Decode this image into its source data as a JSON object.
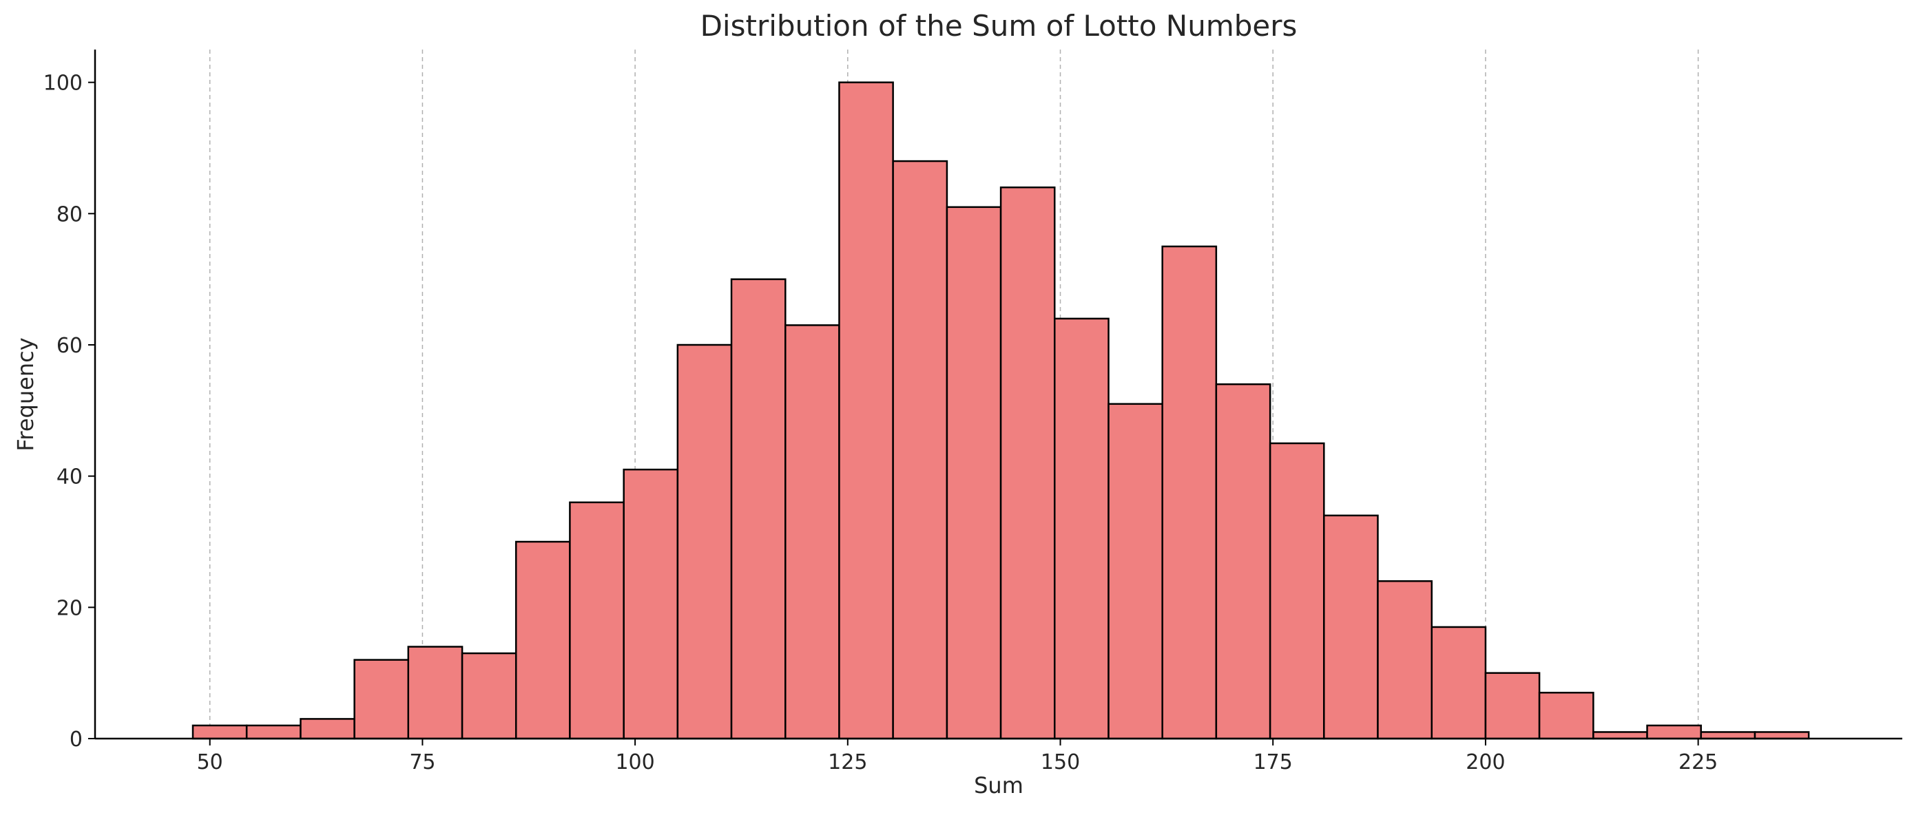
{
  "chart_data": {
    "type": "bar",
    "title": "Distribution of the Sum of Lotto Numbers",
    "xlabel": "Sum",
    "ylabel": "Frequency",
    "xlim": [
      36.5,
      249
    ],
    "ylim": [
      0,
      105
    ],
    "x_ticks": [
      50,
      75,
      100,
      125,
      150,
      175,
      200,
      225
    ],
    "y_ticks": [
      0,
      20,
      40,
      60,
      80,
      100
    ],
    "grid": "vertical-dashed",
    "bin_edges": [
      48,
      54.33,
      60.67,
      67,
      73.33,
      79.67,
      86,
      92.33,
      98.67,
      105,
      111.33,
      117.67,
      124,
      130.33,
      136.67,
      143,
      149.33,
      155.67,
      162,
      168.33,
      174.67,
      181,
      187.33,
      193.67,
      200,
      206.33,
      212.67,
      219,
      225.33,
      231.67,
      238
    ],
    "values": [
      2,
      2,
      3,
      12,
      14,
      13,
      30,
      36,
      41,
      60,
      70,
      63,
      100,
      88,
      81,
      84,
      64,
      51,
      75,
      54,
      45,
      34,
      24,
      17,
      10,
      7,
      1,
      2,
      1,
      1
    ],
    "colors": {
      "bar_fill": "#f08080",
      "bar_edge": "#000000",
      "grid": "#b0b0b0",
      "axis": "#000000"
    }
  }
}
